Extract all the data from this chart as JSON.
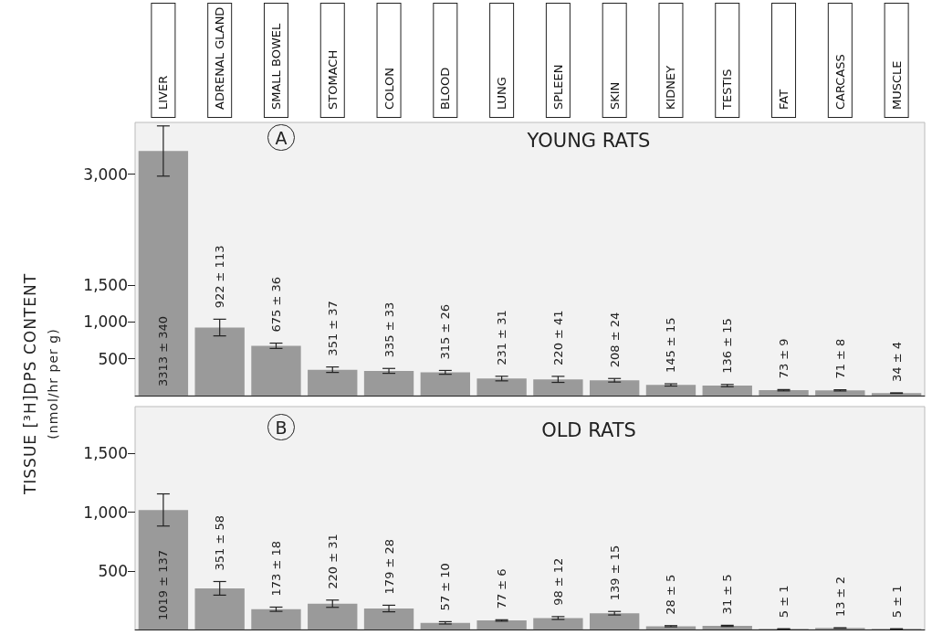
{
  "chart_data": [
    {
      "type": "bar",
      "title": "YOUNG RATS",
      "ylabel": "TISSUE [³H]DPS CONTENT (nmol/hr per g)",
      "annotations": [
        "A"
      ],
      "categories": [
        "LIVER",
        "ADRENAL GLAND",
        "SMALL BOWEL",
        "STOMACH",
        "COLON",
        "BLOOD",
        "LUNG",
        "SPLEEN",
        "SKIN",
        "KIDNEY",
        "TESTIS",
        "FAT",
        "CARCASS",
        "MUSCLE"
      ],
      "series": [
        {
          "color": "#9a9a9a",
          "values": [
            3313,
            922,
            675,
            351,
            335,
            315,
            231,
            220,
            208,
            145,
            136,
            73,
            71,
            34
          ],
          "errors": [
            340,
            113,
            36,
            37,
            33,
            26,
            31,
            41,
            24,
            15,
            15,
            9,
            8,
            4
          ],
          "value_labels": [
            "3313 ± 340",
            "922 ± 113",
            "675 ± 36",
            "351 ± 37",
            "335 ± 33",
            "315 ± 26",
            "231 ± 31",
            "220 ± 41",
            "208 ± 24",
            "145 ± 15",
            "136 ± 15",
            "73 ± 9",
            "71 ± 8",
            "34 ± 4"
          ]
        }
      ],
      "ylim": [
        0,
        3700
      ],
      "yticks": [
        500,
        {
          "value": 1000,
          "label": "1,000"
        },
        {
          "value": 1500,
          "label": "1,500"
        },
        {
          "value": 3000,
          "label": "3,000"
        }
      ],
      "grid": false
    },
    {
      "type": "bar",
      "title": "OLD RATS",
      "annotations": [
        "B"
      ],
      "tick_labels": "y",
      "categories": [
        null,
        null,
        null,
        null,
        null,
        null,
        null,
        null,
        null,
        null,
        null,
        null,
        null,
        null
      ],
      "series": [
        {
          "color": "#9a9a9a",
          "values": [
            1019,
            351,
            173,
            220,
            179,
            57,
            77,
            98,
            139,
            28,
            31,
            5,
            13,
            5
          ],
          "errors": [
            137,
            58,
            18,
            31,
            28,
            10,
            6,
            12,
            15,
            5,
            5,
            1,
            2,
            1
          ],
          "value_labels": [
            "1019 ± 137",
            "351 ± 58",
            "173 ± 18",
            "220 ± 31",
            "179 ± 28",
            "57 ± 10",
            "77 ± 6",
            "98 ± 12",
            "139 ± 15",
            "28 ± 5",
            "31 ± 5",
            "5 ± 1",
            "13 ± 2",
            "5 ± 1"
          ]
        }
      ],
      "ylim": [
        0,
        1900
      ],
      "yticks": [
        500,
        {
          "value": 1000,
          "label": "1,000"
        },
        {
          "value": 1500,
          "label": "1,500"
        }
      ],
      "grid": false
    }
  ]
}
